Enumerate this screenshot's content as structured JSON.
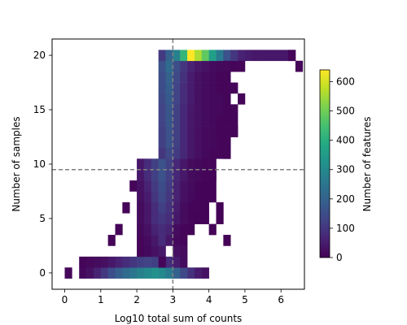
{
  "chart_data": {
    "type": "heatmap",
    "title": "",
    "xlabel": "Log10 total sum of counts",
    "ylabel": "Number of samples",
    "xlim": [
      -0.35,
      6.65
    ],
    "ylim": [
      -1.5,
      21.5
    ],
    "x_ticks": [
      0,
      1,
      2,
      3,
      4,
      5,
      6
    ],
    "y_ticks": [
      0,
      5,
      10,
      15,
      20
    ],
    "bin_width_x": 0.2,
    "reference_lines": {
      "x": 3.0,
      "y": 9.5,
      "style": "dashed",
      "color": "#808080"
    },
    "colorbar": {
      "label": "Number of features",
      "colormap": "viridis",
      "min": 0,
      "max": 640,
      "ticks": [
        0,
        100,
        200,
        300,
        400,
        500,
        600
      ]
    },
    "rows": [
      {
        "y": 0,
        "x0": 0.0,
        "values": [
          12,
          0,
          15,
          30,
          60,
          100,
          150,
          190,
          220,
          250,
          280,
          300,
          320,
          300,
          260,
          200,
          140,
          90,
          50,
          30
        ]
      },
      {
        "y": 1,
        "x0": 0.4,
        "values": [
          8,
          12,
          20,
          25,
          40,
          60,
          80,
          100,
          120,
          130,
          120,
          100,
          80,
          50,
          20
        ]
      },
      {
        "y": 2,
        "x0": 2.0,
        "values": [
          10,
          15,
          30,
          40
        ]
      },
      {
        "y": 3,
        "x0": 2.0,
        "values": [
          10,
          20,
          40,
          80,
          40,
          15,
          8,
          0,
          0,
          0,
          0,
          0,
          3
        ]
      },
      {
        "y": 4,
        "x0": 2.0,
        "values": [
          15,
          30,
          60,
          80,
          60,
          20,
          10,
          5,
          0,
          0,
          5
        ]
      },
      {
        "y": 5,
        "x0": 2.0,
        "values": [
          20,
          40,
          80,
          100,
          80,
          40,
          20,
          10,
          5,
          5,
          0,
          4
        ]
      },
      {
        "y": 6,
        "x0": 2.0,
        "values": [
          20,
          40,
          80,
          120,
          90,
          50,
          20,
          10,
          10,
          5,
          0,
          4
        ]
      },
      {
        "y": 7,
        "x0": 2.0,
        "values": [
          25,
          50,
          100,
          140,
          100,
          60,
          30,
          15,
          10,
          5,
          5
        ]
      },
      {
        "y": 8,
        "x0": 2.0,
        "values": [
          30,
          60,
          110,
          150,
          110,
          60,
          30,
          20,
          10,
          5,
          5
        ]
      },
      {
        "y": 9,
        "x0": 2.0,
        "values": [
          40,
          80,
          120,
          160,
          120,
          70,
          40,
          20,
          15,
          10,
          10
        ]
      },
      {
        "y": 10,
        "x0": 2.0,
        "values": [
          40,
          80,
          120,
          160,
          120,
          70,
          40,
          20,
          15,
          10,
          10
        ]
      },
      {
        "y": 11,
        "x0": 2.6,
        "values": [
          100,
          140,
          110,
          70,
          40,
          25,
          15,
          10,
          10,
          10
        ]
      },
      {
        "y": 12,
        "x0": 2.6,
        "values": [
          120,
          160,
          120,
          70,
          40,
          25,
          15,
          15,
          10,
          10
        ]
      },
      {
        "y": 13,
        "x0": 2.6,
        "values": [
          120,
          160,
          120,
          70,
          40,
          25,
          15,
          15,
          10,
          10,
          10
        ]
      },
      {
        "y": 14,
        "x0": 2.6,
        "values": [
          130,
          170,
          120,
          70,
          40,
          30,
          20,
          15,
          15,
          10,
          10
        ]
      },
      {
        "y": 15,
        "x0": 2.6,
        "values": [
          130,
          170,
          120,
          70,
          40,
          30,
          20,
          15,
          15,
          10,
          10
        ]
      },
      {
        "y": 16,
        "x0": 2.6,
        "values": [
          140,
          180,
          130,
          80,
          50,
          30,
          20,
          15,
          15,
          10
        ]
      },
      {
        "y": 17,
        "x0": 2.6,
        "values": [
          150,
          190,
          130,
          80,
          50,
          30,
          20,
          15,
          10,
          10,
          10
        ]
      },
      {
        "y": 18,
        "x0": 2.6,
        "values": [
          150,
          200,
          140,
          90,
          50,
          30,
          20,
          15,
          10,
          10
        ]
      },
      {
        "y": 19,
        "x0": 2.6,
        "values": [
          160,
          220,
          150,
          100,
          60,
          40,
          30,
          20,
          15,
          10,
          10
        ]
      },
      {
        "y": 20,
        "x0": 2.6,
        "values": [
          110,
          200,
          280,
          420,
          640,
          560,
          480,
          360,
          260,
          160,
          100,
          60,
          50,
          40,
          40,
          40,
          40,
          40,
          30
        ]
      }
    ],
    "isolated_cells": [
      {
        "x": 3.0,
        "y": 2,
        "value": 25
      },
      {
        "x": 3.2,
        "y": 2,
        "value": 20
      },
      {
        "x": 2.6,
        "y": 1,
        "value": 10
      },
      {
        "x": 4.4,
        "y": 19,
        "value": 12
      },
      {
        "x": 4.8,
        "y": 19,
        "value": 10
      },
      {
        "x": 4.4,
        "y": 17,
        "value": 10
      },
      {
        "x": 4.8,
        "y": 16,
        "value": 10
      },
      {
        "x": 4.6,
        "y": 13,
        "value": 10
      },
      {
        "x": 4.4,
        "y": 12,
        "value": 10
      },
      {
        "x": 4.2,
        "y": 14,
        "value": 10
      },
      {
        "x": 4.4,
        "y": 11,
        "value": 8
      },
      {
        "x": 4.0,
        "y": 9,
        "value": 8
      },
      {
        "x": 1.2,
        "y": 3,
        "value": 8
      },
      {
        "x": 1.4,
        "y": 4,
        "value": 8
      },
      {
        "x": 1.6,
        "y": 6,
        "value": 8
      },
      {
        "x": 1.8,
        "y": 8,
        "value": 10
      },
      {
        "x": 6.4,
        "y": 19,
        "value": 8
      },
      {
        "x": 6.2,
        "y": 20,
        "value": 8
      }
    ]
  }
}
